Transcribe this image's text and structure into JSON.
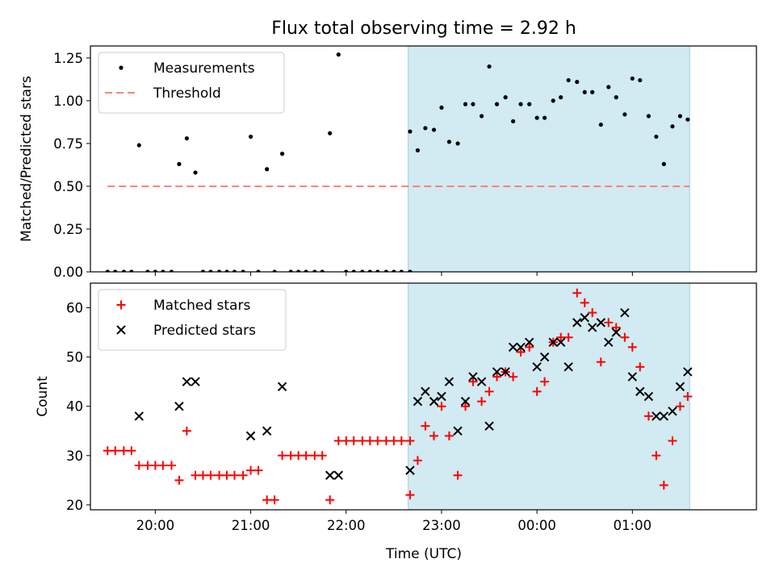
{
  "figure": {
    "title": "Flux total observing time = 2.92 h",
    "xlabel": "Time (UTC)",
    "xtick_labels": [
      "20:00",
      "21:00",
      "22:00",
      "23:00",
      "00:00",
      "01:00"
    ]
  },
  "colors": {
    "highlight_span": "#add8e6",
    "matched": "#ff0000",
    "predicted": "#000000",
    "threshold": "#ff7f7f",
    "measurements": "#000000"
  },
  "chart_data": [
    {
      "type": "scatter",
      "ylabel": "Matched/Predicted stars",
      "ylim": [
        0,
        1.32
      ],
      "yticks": [
        "0.00",
        "0.25",
        "0.50",
        "0.75",
        "1.00",
        "1.25"
      ],
      "xlim_hours": [
        19.32,
        26.3
      ],
      "highlight_span_hours": [
        22.65,
        25.6
      ],
      "legend_position": "upper-left",
      "legend": [
        "Measurements",
        "Threshold"
      ],
      "threshold": {
        "value": 0.5,
        "x_range_hours": [
          19.5,
          25.6
        ]
      },
      "series": [
        {
          "name": "Measurements",
          "points": [
            [
              19.5,
              0
            ],
            [
              19.58,
              0
            ],
            [
              19.67,
              0
            ],
            [
              19.75,
              0
            ],
            [
              19.83,
              0.74
            ],
            [
              19.92,
              0
            ],
            [
              20.0,
              0
            ],
            [
              20.08,
              0
            ],
            [
              20.17,
              0
            ],
            [
              20.25,
              0.63
            ],
            [
              20.33,
              0.78
            ],
            [
              20.42,
              0.58
            ],
            [
              20.5,
              0
            ],
            [
              20.58,
              0
            ],
            [
              20.67,
              0
            ],
            [
              20.75,
              0
            ],
            [
              20.83,
              0
            ],
            [
              20.92,
              0
            ],
            [
              21.0,
              0.79
            ],
            [
              21.08,
              0
            ],
            [
              21.17,
              0.6
            ],
            [
              21.25,
              0
            ],
            [
              21.33,
              0.69
            ],
            [
              21.42,
              0
            ],
            [
              21.5,
              0
            ],
            [
              21.58,
              0
            ],
            [
              21.67,
              0
            ],
            [
              21.75,
              0
            ],
            [
              21.83,
              0.81
            ],
            [
              21.92,
              1.27
            ],
            [
              22.0,
              0
            ],
            [
              22.08,
              0
            ],
            [
              22.17,
              0
            ],
            [
              22.25,
              0
            ],
            [
              22.33,
              0
            ],
            [
              22.42,
              0
            ],
            [
              22.5,
              0
            ],
            [
              22.58,
              0
            ],
            [
              22.67,
              0
            ],
            [
              22.67,
              0.82
            ],
            [
              22.75,
              0.71
            ],
            [
              22.83,
              0.84
            ],
            [
              22.92,
              0.83
            ],
            [
              23.0,
              0.96
            ],
            [
              23.08,
              0.76
            ],
            [
              23.17,
              0.75
            ],
            [
              23.25,
              0.98
            ],
            [
              23.33,
              0.98
            ],
            [
              23.42,
              0.91
            ],
            [
              23.5,
              1.2
            ],
            [
              23.58,
              0.98
            ],
            [
              23.67,
              1.02
            ],
            [
              23.75,
              0.88
            ],
            [
              23.83,
              0.98
            ],
            [
              23.92,
              0.98
            ],
            [
              24.0,
              0.9
            ],
            [
              24.08,
              0.9
            ],
            [
              24.17,
              1.0
            ],
            [
              24.25,
              1.02
            ],
            [
              24.33,
              1.12
            ],
            [
              24.42,
              1.11
            ],
            [
              24.5,
              1.05
            ],
            [
              24.58,
              1.05
            ],
            [
              24.67,
              0.86
            ],
            [
              24.75,
              1.08
            ],
            [
              24.83,
              1.02
            ],
            [
              24.92,
              0.92
            ],
            [
              25.0,
              1.13
            ],
            [
              25.08,
              1.12
            ],
            [
              25.17,
              0.91
            ],
            [
              25.25,
              0.79
            ],
            [
              25.33,
              0.63
            ],
            [
              25.42,
              0.85
            ],
            [
              25.5,
              0.91
            ],
            [
              25.58,
              0.89
            ]
          ]
        }
      ]
    },
    {
      "type": "scatter",
      "ylabel": "Count",
      "ylim": [
        19,
        65
      ],
      "yticks": [
        "20",
        "30",
        "40",
        "50",
        "60"
      ],
      "xlim_hours": [
        19.32,
        26.3
      ],
      "highlight_span_hours": [
        22.65,
        25.6
      ],
      "legend_position": "upper-left",
      "legend": [
        "Matched stars",
        "Predicted stars"
      ],
      "series": [
        {
          "name": "Matched stars",
          "marker": "plus",
          "points": [
            [
              19.5,
              31
            ],
            [
              19.58,
              31
            ],
            [
              19.67,
              31
            ],
            [
              19.75,
              31
            ],
            [
              19.83,
              28
            ],
            [
              19.92,
              28
            ],
            [
              20.0,
              28
            ],
            [
              20.08,
              28
            ],
            [
              20.17,
              28
            ],
            [
              20.25,
              25
            ],
            [
              20.33,
              35
            ],
            [
              20.42,
              26
            ],
            [
              20.5,
              26
            ],
            [
              20.58,
              26
            ],
            [
              20.67,
              26
            ],
            [
              20.75,
              26
            ],
            [
              20.83,
              26
            ],
            [
              20.92,
              26
            ],
            [
              21.0,
              27
            ],
            [
              21.08,
              27
            ],
            [
              21.17,
              21
            ],
            [
              21.25,
              21
            ],
            [
              21.33,
              30
            ],
            [
              21.42,
              30
            ],
            [
              21.5,
              30
            ],
            [
              21.58,
              30
            ],
            [
              21.67,
              30
            ],
            [
              21.75,
              30
            ],
            [
              21.83,
              21
            ],
            [
              21.92,
              33
            ],
            [
              22.0,
              33
            ],
            [
              22.08,
              33
            ],
            [
              22.17,
              33
            ],
            [
              22.25,
              33
            ],
            [
              22.33,
              33
            ],
            [
              22.42,
              33
            ],
            [
              22.5,
              33
            ],
            [
              22.58,
              33
            ],
            [
              22.67,
              33
            ],
            [
              22.67,
              22
            ],
            [
              22.75,
              29
            ],
            [
              22.83,
              36
            ],
            [
              22.92,
              34
            ],
            [
              23.0,
              40
            ],
            [
              23.08,
              34
            ],
            [
              23.17,
              26
            ],
            [
              23.25,
              40
            ],
            [
              23.33,
              45
            ],
            [
              23.42,
              41
            ],
            [
              23.5,
              43
            ],
            [
              23.58,
              46
            ],
            [
              23.67,
              47
            ],
            [
              23.75,
              46
            ],
            [
              23.83,
              51
            ],
            [
              23.92,
              52
            ],
            [
              24.0,
              43
            ],
            [
              24.08,
              45
            ],
            [
              24.17,
              53
            ],
            [
              24.25,
              54
            ],
            [
              24.33,
              54
            ],
            [
              24.42,
              63
            ],
            [
              24.5,
              61
            ],
            [
              24.58,
              59
            ],
            [
              24.67,
              49
            ],
            [
              24.75,
              57
            ],
            [
              24.83,
              56
            ],
            [
              24.92,
              54
            ],
            [
              25.0,
              52
            ],
            [
              25.08,
              48
            ],
            [
              25.17,
              38
            ],
            [
              25.25,
              30
            ],
            [
              25.33,
              24
            ],
            [
              25.42,
              33
            ],
            [
              25.5,
              40
            ],
            [
              25.58,
              42
            ]
          ]
        },
        {
          "name": "Predicted stars",
          "marker": "x",
          "points": [
            [
              19.83,
              38
            ],
            [
              20.25,
              40
            ],
            [
              20.33,
              45
            ],
            [
              20.42,
              45
            ],
            [
              21.0,
              34
            ],
            [
              21.17,
              35
            ],
            [
              21.33,
              44
            ],
            [
              21.83,
              26
            ],
            [
              21.92,
              26
            ],
            [
              22.67,
              27
            ],
            [
              22.75,
              41
            ],
            [
              22.83,
              43
            ],
            [
              22.92,
              41
            ],
            [
              23.0,
              42
            ],
            [
              23.08,
              45
            ],
            [
              23.17,
              35
            ],
            [
              23.25,
              41
            ],
            [
              23.33,
              46
            ],
            [
              23.42,
              45
            ],
            [
              23.5,
              36
            ],
            [
              23.58,
              47
            ],
            [
              23.67,
              47
            ],
            [
              23.75,
              52
            ],
            [
              23.83,
              52
            ],
            [
              23.92,
              53
            ],
            [
              24.0,
              48
            ],
            [
              24.08,
              50
            ],
            [
              24.17,
              53
            ],
            [
              24.25,
              53
            ],
            [
              24.33,
              48
            ],
            [
              24.42,
              57
            ],
            [
              24.5,
              58
            ],
            [
              24.58,
              56
            ],
            [
              24.67,
              57
            ],
            [
              24.75,
              53
            ],
            [
              24.83,
              55
            ],
            [
              24.92,
              59
            ],
            [
              25.0,
              46
            ],
            [
              25.08,
              43
            ],
            [
              25.17,
              42
            ],
            [
              25.25,
              38
            ],
            [
              25.33,
              38
            ],
            [
              25.42,
              39
            ],
            [
              25.5,
              44
            ],
            [
              25.58,
              47
            ]
          ]
        }
      ]
    }
  ]
}
